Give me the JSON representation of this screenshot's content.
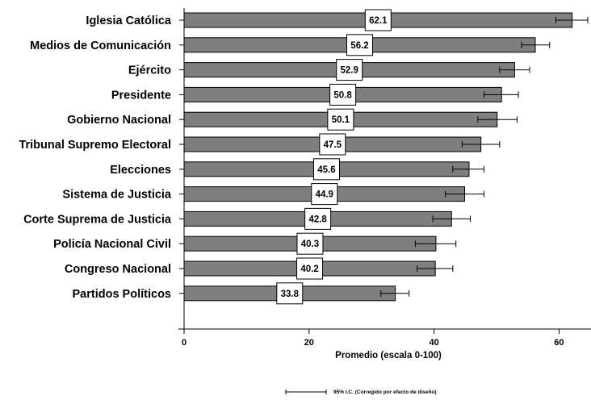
{
  "chart_data": {
    "type": "bar",
    "orientation": "horizontal",
    "categories": [
      "Iglesia Católica",
      "Medios de Comunicación",
      "Ejército",
      "Presidente",
      "Gobierno Nacional",
      "Tribunal Supremo Electoral",
      "Elecciones",
      "Sistema de Justicia",
      "Corte Suprema de Justicia",
      "Policía Nacional Civil",
      "Congreso Nacional",
      "Partidos Políticos"
    ],
    "values": [
      62.1,
      56.2,
      52.9,
      50.8,
      50.1,
      47.5,
      45.6,
      44.9,
      42.8,
      40.3,
      40.2,
      33.8
    ],
    "data_labels": [
      "62.1",
      "56.2",
      "52.9",
      "50.8",
      "50.1",
      "47.5",
      "45.6",
      "44.9",
      "42.8",
      "40.3",
      "40.2",
      "33.8"
    ],
    "error_low": [
      59.5,
      54.0,
      50.5,
      48.0,
      47.0,
      44.5,
      43.0,
      41.8,
      39.8,
      37.0,
      37.3,
      31.5
    ],
    "error_high": [
      64.6,
      58.5,
      55.3,
      53.5,
      53.3,
      50.5,
      48.0,
      48.0,
      45.8,
      43.5,
      43.0,
      36.0
    ],
    "xlabel": "Promedio (escala 0-100)",
    "ylabel": "",
    "xlim": [
      0,
      65
    ],
    "xticks": [
      0,
      20,
      40,
      60
    ],
    "grid": false,
    "legend": {
      "placement": "bottom",
      "label": "95% I.C. (Corregido por efecto de diseño)"
    },
    "colors": {
      "bar_fill": "#7f7f7f",
      "bar_stroke": "#000000",
      "error_bar": "#000000",
      "label_box": "#ffffff"
    }
  }
}
